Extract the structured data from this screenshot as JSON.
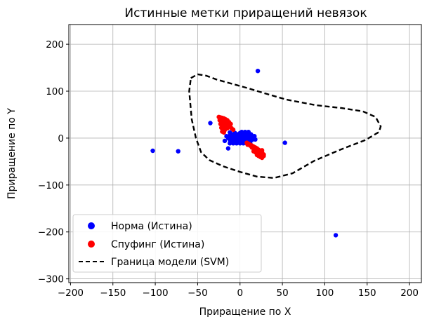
{
  "chart_data": {
    "type": "scatter",
    "title": "Истинные метки приращений невязок",
    "xlabel": "Приращение по X",
    "ylabel": "Приращение по Y",
    "xlim": [
      -202,
      214
    ],
    "ylim": [
      -308,
      242
    ],
    "xticks": [
      -200,
      -150,
      -100,
      -50,
      0,
      50,
      100,
      150,
      200
    ],
    "yticks": [
      -300,
      -200,
      -100,
      0,
      100,
      200
    ],
    "xtick_labels": [
      "−200",
      "−150",
      "−100",
      "−50",
      "0",
      "50",
      "100",
      "150",
      "200"
    ],
    "ytick_labels": [
      "−300",
      "−200",
      "−100",
      "0",
      "100",
      "200"
    ],
    "grid": true,
    "legend_position": "lower-left",
    "series": [
      {
        "name": "Норма (Истина)",
        "marker": "circle",
        "color": "#0000ff",
        "x": [
          -103,
          -73,
          21,
          53,
          113,
          -35,
          -12,
          -14,
          -16,
          -13,
          -11,
          -9,
          -7,
          -5,
          -3,
          -1,
          1,
          3,
          5,
          7,
          9,
          11,
          13,
          15,
          17,
          -14,
          -12,
          -10,
          -8,
          -6,
          -4,
          -2,
          0,
          2,
          4,
          6,
          8,
          10,
          12,
          14,
          16,
          -12,
          -10,
          -8,
          -6,
          -4,
          -2,
          0,
          2,
          4,
          6,
          8,
          10,
          12,
          14,
          -11,
          -9,
          -7,
          -5,
          -3,
          -1,
          1,
          3,
          5,
          7,
          9,
          11,
          13,
          -10,
          -8,
          -6,
          -4,
          -2,
          0,
          2,
          4,
          6,
          8,
          10,
          -12,
          -8,
          -4,
          0,
          4,
          8,
          12,
          -6,
          0,
          6,
          2,
          6,
          10,
          -18,
          18
        ],
        "y": [
          -27,
          -28,
          143,
          -10,
          -207,
          32,
          12,
          -22,
          4,
          4,
          4,
          4,
          4,
          4,
          4,
          4,
          4,
          4,
          4,
          4,
          4,
          4,
          4,
          4,
          4,
          0,
          0,
          0,
          0,
          0,
          0,
          0,
          0,
          0,
          0,
          0,
          0,
          0,
          0,
          0,
          0,
          -4,
          -4,
          -4,
          -4,
          -4,
          -4,
          -4,
          -4,
          -4,
          -4,
          -4,
          -4,
          -4,
          -4,
          8,
          8,
          8,
          8,
          8,
          8,
          8,
          8,
          8,
          8,
          8,
          8,
          8,
          -8,
          -8,
          -8,
          -8,
          -8,
          -8,
          -8,
          -8,
          -8,
          -8,
          -8,
          -11,
          -11,
          -11,
          -11,
          -11,
          -11,
          -11,
          11,
          11,
          11,
          13,
          13,
          13,
          -6,
          -3
        ]
      },
      {
        "name": "Спуфинг (Истина)",
        "marker": "circle",
        "color": "#ff0000",
        "x": [
          -25,
          -23,
          -21,
          -19,
          -17,
          -15,
          -13,
          -11,
          -24,
          -22,
          -20,
          -18,
          -16,
          -14,
          -23,
          -21,
          -19,
          -17,
          -15,
          -22,
          -20,
          -18,
          -21,
          -19,
          -12,
          -10,
          -8,
          10,
          12,
          14,
          16,
          18,
          20,
          22,
          24,
          26,
          28,
          14,
          16,
          18,
          20,
          22,
          24,
          26,
          16,
          18,
          20,
          22,
          24,
          20,
          22,
          24,
          26,
          28,
          12,
          14,
          18,
          26,
          8,
          9
        ],
        "y": [
          45,
          44,
          43,
          42,
          40,
          38,
          34,
          30,
          38,
          37,
          36,
          35,
          32,
          28,
          30,
          28,
          26,
          24,
          21,
          22,
          20,
          17,
          14,
          12,
          25,
          21,
          18,
          -12,
          -14,
          -16,
          -18,
          -20,
          -22,
          -25,
          -27,
          -30,
          -35,
          -20,
          -22,
          -24,
          -26,
          -28,
          -30,
          -33,
          -28,
          -30,
          -32,
          -34,
          -36,
          -36,
          -38,
          -40,
          -42,
          -38,
          -16,
          -18,
          -26,
          -26,
          -10,
          -14
        ]
      }
    ],
    "boundary": {
      "name": "Граница модели (SVM)",
      "style": "dashed",
      "color": "#000000",
      "x": [
        -58,
        -50,
        -40,
        -28,
        -10,
        10,
        30,
        55,
        90,
        120,
        145,
        160,
        166,
        164,
        148,
        118,
        88,
        62,
        40,
        20,
        0,
        -20,
        -36,
        -46,
        -52,
        -57,
        -60,
        -58
      ],
      "y": [
        128,
        136,
        133,
        125,
        116,
        106,
        95,
        82,
        70,
        64,
        57,
        45,
        25,
        13,
        -4,
        -25,
        -48,
        -75,
        -85,
        -82,
        -72,
        -60,
        -47,
        -30,
        0,
        40,
        100,
        128
      ]
    }
  }
}
